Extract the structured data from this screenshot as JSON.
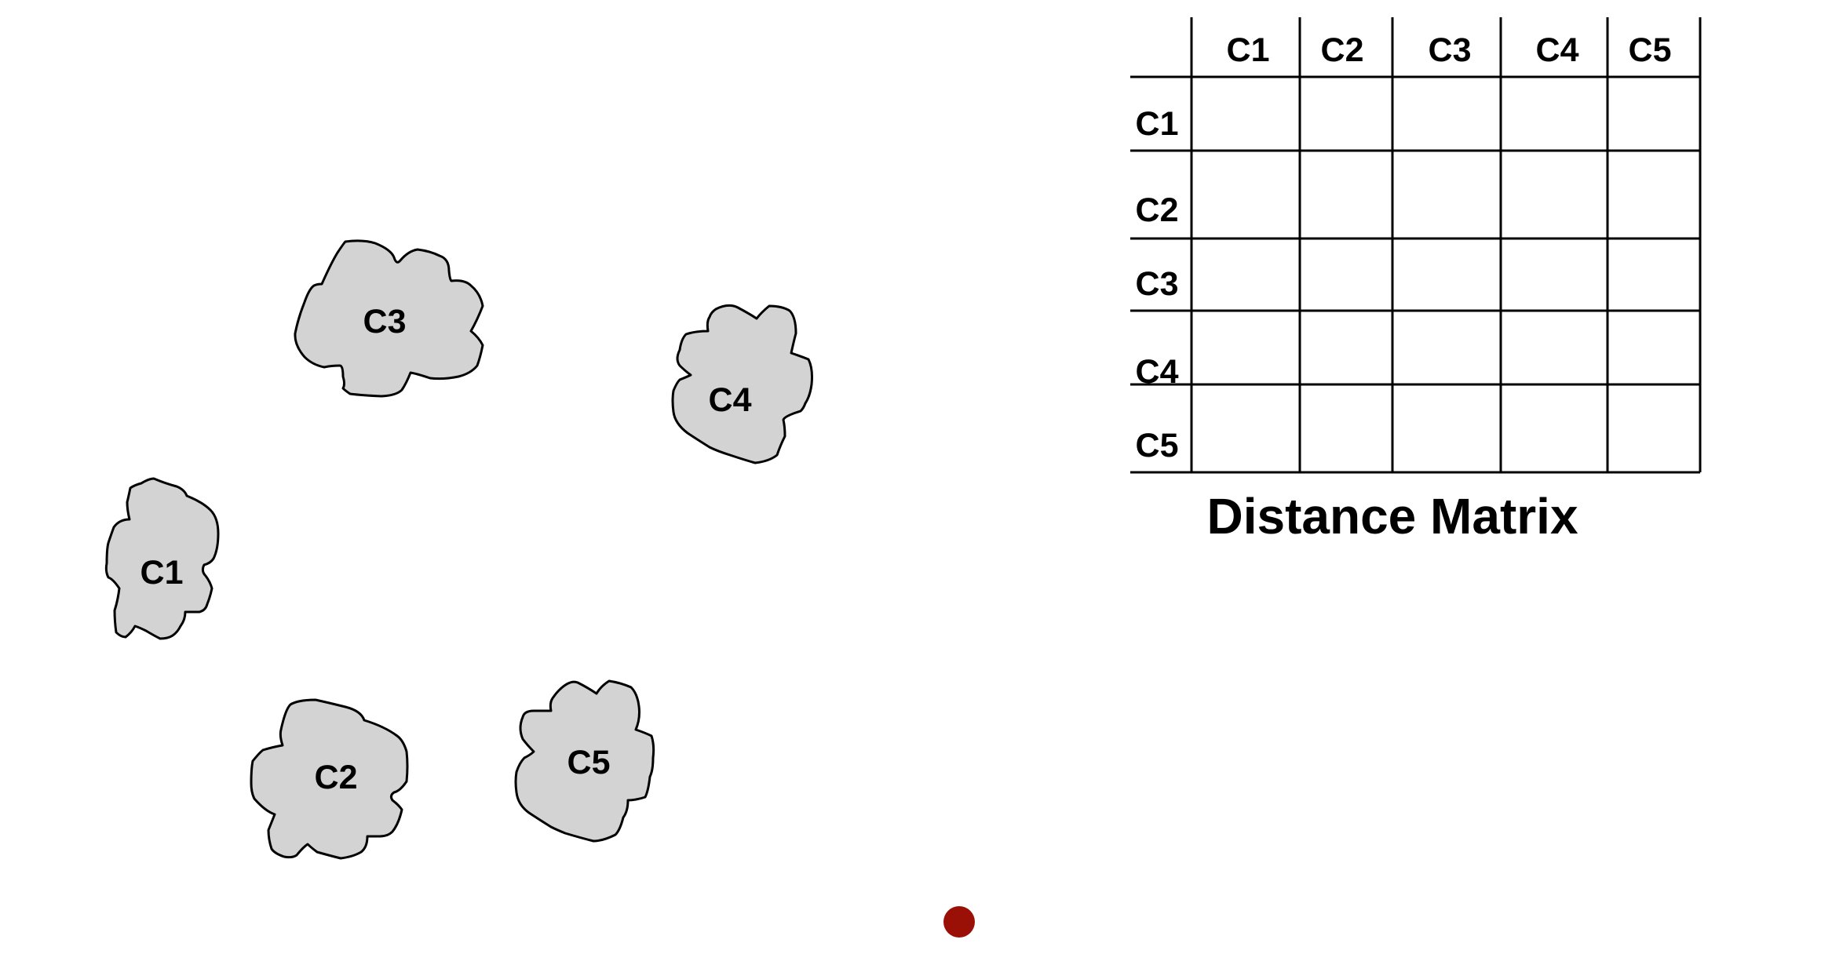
{
  "clusters": [
    {
      "label": "C1"
    },
    {
      "label": "C2"
    },
    {
      "label": "C3"
    },
    {
      "label": "C4"
    },
    {
      "label": "C5"
    }
  ],
  "matrix": {
    "title": "Distance Matrix",
    "column_headers": [
      "C1",
      "C2",
      "C3",
      "C4",
      "C5"
    ],
    "row_headers": [
      "C1",
      "C2",
      "C3",
      "C4",
      "C5"
    ],
    "cells": [
      [
        "",
        "",
        "",
        "",
        ""
      ],
      [
        "",
        "",
        "",
        "",
        ""
      ],
      [
        "",
        "",
        "",
        "",
        ""
      ],
      [
        "",
        "",
        "",
        "",
        ""
      ],
      [
        "",
        "",
        "",
        "",
        ""
      ]
    ]
  },
  "colors": {
    "cluster_fill": "#d3d3d3",
    "outline": "#000000",
    "marker": "#9b1006",
    "background": "#ffffff"
  }
}
